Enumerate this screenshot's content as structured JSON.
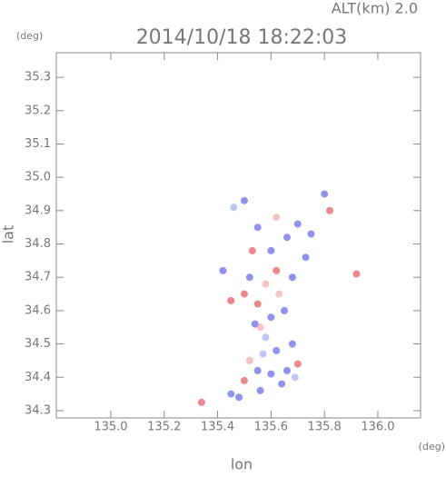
{
  "chart_data": {
    "type": "scatter",
    "title": "2014/10/18 18:22:03",
    "annotation": "ALT(km)  2.0",
    "y_unit": "(deg)",
    "x_unit": "(deg)",
    "x_label": "lon",
    "y_label": "lat",
    "xlim": [
      134.796,
      136.16
    ],
    "ylim": [
      34.278,
      35.374
    ],
    "xticks": [
      {
        "value": 135,
        "label": "135.0"
      },
      {
        "value": 135.2,
        "label": "135.2"
      },
      {
        "value": 135.4,
        "label": "135.4"
      },
      {
        "value": 135.6,
        "label": "135.6"
      },
      {
        "value": 135.8,
        "label": "135.8"
      },
      {
        "value": 136,
        "label": "136.0"
      }
    ],
    "yticks": [
      34.3,
      34.4,
      34.5,
      34.6,
      34.7,
      34.8,
      34.9,
      {
        "value": 35,
        "label": "35.0"
      },
      35.1,
      35.2,
      35.3
    ],
    "x": [
      135.34,
      135.92,
      135.56,
      135.48,
      135.45,
      135.6,
      135.66,
      135.7,
      135.52,
      135.55,
      135.62,
      135.68,
      135.58,
      135.6,
      135.55,
      135.65,
      135.5,
      135.58,
      135.62,
      135.52,
      135.45,
      135.68,
      135.6,
      135.66,
      135.7,
      135.75,
      135.8,
      135.82,
      135.5,
      135.46,
      135.55,
      135.53,
      135.62,
      135.73,
      135.42,
      135.56,
      135.64,
      135.5,
      135.57,
      135.63,
      135.54,
      135.69
    ],
    "y": [
      34.325,
      34.71,
      34.36,
      34.34,
      34.35,
      34.41,
      34.42,
      34.44,
      34.45,
      34.42,
      34.48,
      34.5,
      34.52,
      34.58,
      34.62,
      34.6,
      34.65,
      34.68,
      34.72,
      34.7,
      34.63,
      34.7,
      34.78,
      34.82,
      34.86,
      34.83,
      34.95,
      34.9,
      34.93,
      34.91,
      34.85,
      34.78,
      34.88,
      34.76,
      34.72,
      34.55,
      34.38,
      34.39,
      34.47,
      34.65,
      34.56,
      34.4
    ],
    "colors": [
      "#e8737a",
      "#e8737a",
      "#7d7fe8",
      "#7d7fe8",
      "#7d7fe8",
      "#7d7fe8",
      "#7d7fe8",
      "#e8737a",
      "#f2b8bb",
      "#7d7fe8",
      "#7d7fe8",
      "#7d7fe8",
      "#b9bbf2",
      "#7d7fe8",
      "#e8737a",
      "#7d7fe8",
      "#e8737a",
      "#f2b8bb",
      "#e8737a",
      "#7d7fe8",
      "#e8737a",
      "#7d7fe8",
      "#7d7fe8",
      "#7d7fe8",
      "#7d7fe8",
      "#7d7fe8",
      "#7d7fe8",
      "#e8737a",
      "#7d7fe8",
      "#b9bbf2",
      "#7d7fe8",
      "#e8737a",
      "#f2b8bb",
      "#7d7fe8",
      "#7d7fe8",
      "#f2b8bb",
      "#7d7fe8",
      "#e8737a",
      "#b9bbf2",
      "#f2b8bb",
      "#7d7fe8",
      "#b9bbf2"
    ]
  }
}
